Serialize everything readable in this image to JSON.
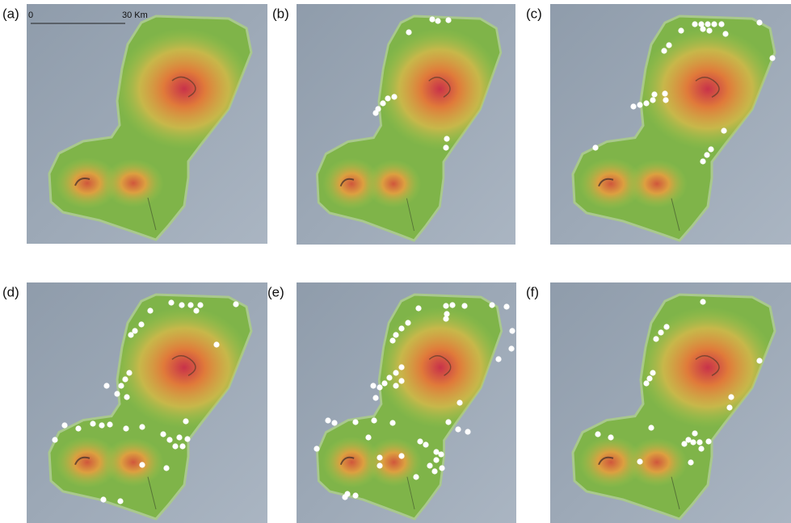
{
  "panels": [
    {
      "label": "(a)"
    },
    {
      "label": "(b)"
    },
    {
      "label": "(c)"
    },
    {
      "label": "(d)"
    },
    {
      "label": "(e)"
    },
    {
      "label": "(f)"
    }
  ],
  "scale_bar": {
    "start": "0",
    "end": "30 Km"
  }
}
